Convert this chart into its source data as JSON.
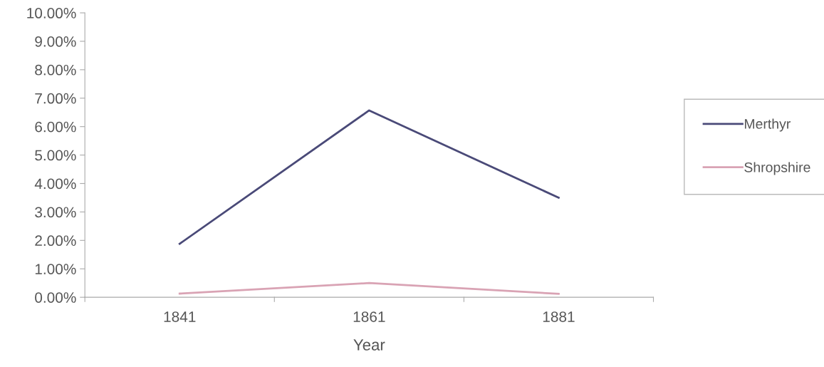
{
  "chart_data": {
    "type": "line",
    "xlabel": "Year",
    "categories": [
      "1841",
      "1861",
      "1881"
    ],
    "series": [
      {
        "name": "Merthyr",
        "color": "#4a4a78",
        "values": [
          1.88,
          6.57,
          3.5
        ]
      },
      {
        "name": "Shropshire",
        "color": "#d9a3b4",
        "values": [
          0.13,
          0.5,
          0.12
        ]
      }
    ],
    "ylim": [
      0,
      10
    ],
    "yticks": [
      {
        "value": 0,
        "label": "0.00%"
      },
      {
        "value": 1,
        "label": "1.00%"
      },
      {
        "value": 2,
        "label": "2.00%"
      },
      {
        "value": 3,
        "label": "3.00%"
      },
      {
        "value": 4,
        "label": "4.00%"
      },
      {
        "value": 5,
        "label": "5.00%"
      },
      {
        "value": 6,
        "label": "6.00%"
      },
      {
        "value": 7,
        "label": "7.00%"
      },
      {
        "value": 8,
        "label": "8.00%"
      },
      {
        "value": 9,
        "label": "9.00%"
      },
      {
        "value": 10,
        "label": "10.00%"
      }
    ],
    "grid": false,
    "legend": "right",
    "marker": "none"
  }
}
